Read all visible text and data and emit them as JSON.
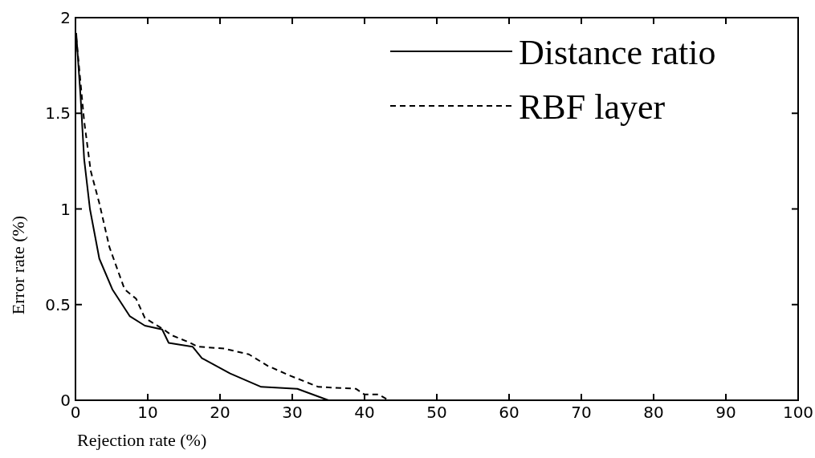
{
  "chart_data": {
    "type": "line",
    "xlabel": "Rejection rate (%)",
    "ylabel": "Error rate (%)",
    "xlim": [
      0,
      100
    ],
    "ylim": [
      0,
      2
    ],
    "xticks": [
      0,
      10,
      20,
      30,
      40,
      50,
      60,
      70,
      80,
      90,
      100
    ],
    "yticks": [
      0,
      0.5,
      1,
      1.5,
      2
    ],
    "legend": "top right",
    "grid": false,
    "series": [
      {
        "name": "Distance ratio",
        "color": "#000000",
        "line_style": "solid",
        "x": [
          0.1,
          0.7,
          1.2,
          2,
          3.3,
          5.1,
          7.5,
          9.6,
          12,
          12.9,
          16.2,
          17.5,
          21.4,
          25.7,
          30.7,
          35,
          100
        ],
        "values": [
          1.92,
          1.59,
          1.26,
          1,
          0.74,
          0.58,
          0.44,
          0.39,
          0.37,
          0.3,
          0.28,
          0.22,
          0.14,
          0.07,
          0.06,
          0,
          0
        ]
      },
      {
        "name": "RBF layer",
        "color": "#000000",
        "line_style": "dashed",
        "x": [
          0.1,
          1.2,
          2.1,
          3.3,
          4.7,
          6.8,
          8.4,
          9.6,
          12.2,
          13.3,
          15.9,
          16.9,
          20.6,
          24,
          26.6,
          29.6,
          33.6,
          38.8,
          40,
          42,
          43.3,
          100
        ],
        "values": [
          1.9,
          1.46,
          1.2,
          1.03,
          0.8,
          0.58,
          0.53,
          0.43,
          0.37,
          0.34,
          0.3,
          0.28,
          0.27,
          0.24,
          0.18,
          0.13,
          0.07,
          0.06,
          0.03,
          0.03,
          0,
          0
        ]
      }
    ]
  }
}
